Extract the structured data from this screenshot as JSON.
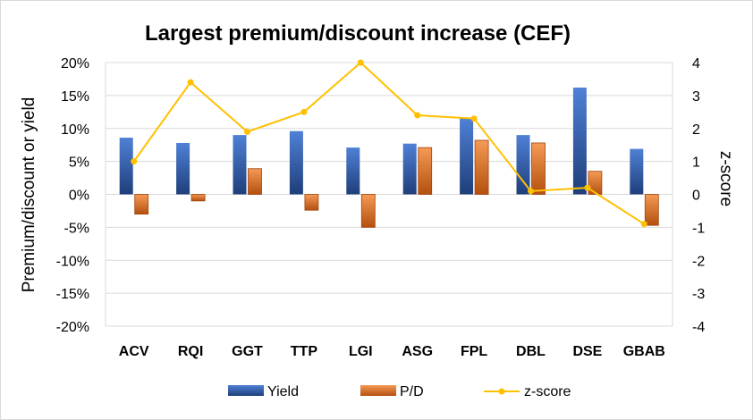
{
  "chart_data": {
    "type": "bar",
    "title": "Largest premium/discount increase (CEF)",
    "ylabel": "Premium/discount or yield",
    "y2label": "z-score",
    "categories": [
      "ACV",
      "RQI",
      "GGT",
      "TTP",
      "LGI",
      "ASG",
      "FPL",
      "DBL",
      "DSE",
      "GBAB"
    ],
    "ylim": [
      -20,
      20
    ],
    "y2lim": [
      -4,
      4
    ],
    "yticks": [
      "20%",
      "15%",
      "10%",
      "5%",
      "0%",
      "-5%",
      "-10%",
      "-15%",
      "-20%"
    ],
    "y2ticks": [
      "4",
      "3",
      "2",
      "1",
      "0",
      "-1",
      "-2",
      "-3",
      "-4"
    ],
    "grid": true,
    "legend_position": "bottom",
    "series": [
      {
        "name": "Yield",
        "kind": "bar",
        "axis": "left",
        "color": "#4472C4",
        "values": [
          8.6,
          7.8,
          9.0,
          9.6,
          7.1,
          7.7,
          11.6,
          9.0,
          16.2,
          6.9
        ]
      },
      {
        "name": "P/D",
        "kind": "bar",
        "axis": "left",
        "color": "#ED7D31",
        "values": [
          -3.0,
          -1.0,
          3.9,
          -2.4,
          -5.0,
          7.1,
          8.2,
          7.8,
          3.5,
          -4.7
        ]
      },
      {
        "name": "z-score",
        "kind": "line",
        "axis": "right",
        "color": "#FFC000",
        "values": [
          1.0,
          3.4,
          1.9,
          2.5,
          4.0,
          2.4,
          2.3,
          0.1,
          0.2,
          -0.9
        ]
      }
    ]
  }
}
